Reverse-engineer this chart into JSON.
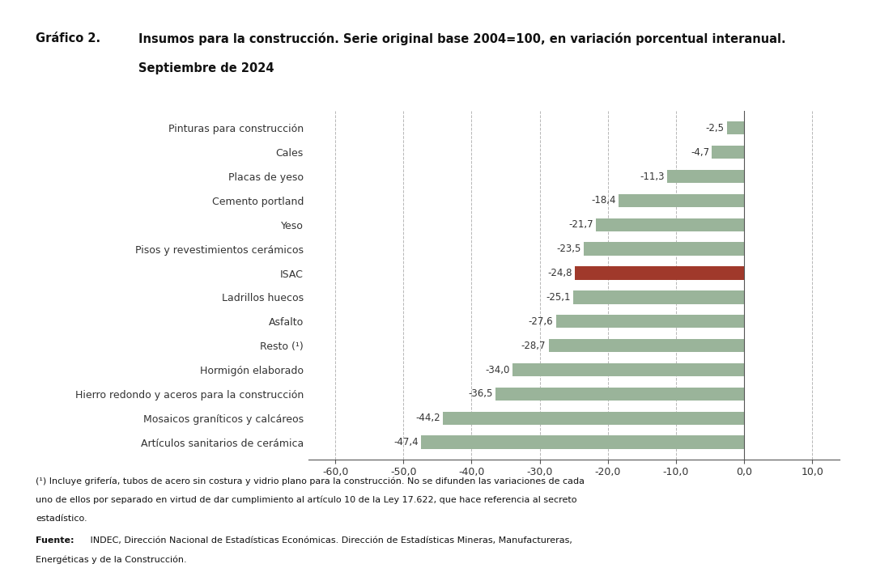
{
  "categories": [
    "Artículos sanitarios de cerámica",
    "Mosaicos graníticos y calcáreos",
    "Hierro redondo y aceros para la construcción",
    "Hormigón elaborado",
    "Resto (¹)",
    "Asfalto",
    "Ladrillos huecos",
    "ISAC",
    "Pisos y revestimientos cerámicos",
    "Yeso",
    "Cemento portland",
    "Placas de yeso",
    "Cales",
    "Pinturas para construcción"
  ],
  "values": [
    -47.4,
    -44.2,
    -36.5,
    -34.0,
    -28.7,
    -27.6,
    -25.1,
    -24.8,
    -23.5,
    -21.7,
    -18.4,
    -11.3,
    -4.7,
    -2.5
  ],
  "bar_colors_normal": "#9ab49a",
  "bar_color_isac": "#a0392b",
  "xlim": [
    -64,
    14
  ],
  "xticks": [
    -60.0,
    -50.0,
    -40.0,
    -30.0,
    -20.0,
    -10.0,
    0.0,
    10.0
  ],
  "background_color": "#ffffff",
  "grid_color": "#b0b0b0",
  "axis_color": "#555555",
  "title_prefix": "Gráfico 2.",
  "title_main": "Insumos para la construcción. Serie original base 2004=100, en variación porcentual interanual.",
  "title_sub": "Septiembre de 2024",
  "footnote1": "(¹) Incluye grifería, tubos de acero sin costura y vidrio plano para la construcción. No se difunden las variaciones de cada",
  "footnote2": "uno de ellos por separado en virtud de dar cumplimiento al artículo 10 de la Ley 17.622, que hace referencia al secreto",
  "footnote3": "estadístico.",
  "footnote4_bold": "Fuente:",
  "footnote4_rest": " INDEC, Dirección Nacional de Estadísticas Económicas. Dirección de Estadísticas Mineras, Manufactureras,",
  "footnote5": "Energéticas y de la Construcción.",
  "value_labels": [
    "-47,4",
    "-44,2",
    "-36,5",
    "-34,0",
    "-28,7",
    "-27,6",
    "-25,1",
    "-24,8",
    "-23,5",
    "-21,7",
    "-18,4",
    "-11,3",
    "-4,7",
    "-2,5"
  ],
  "label_color": "#333333",
  "tick_label_fontsize": 9,
  "bar_label_fontsize": 8.5,
  "bar_height": 0.55
}
